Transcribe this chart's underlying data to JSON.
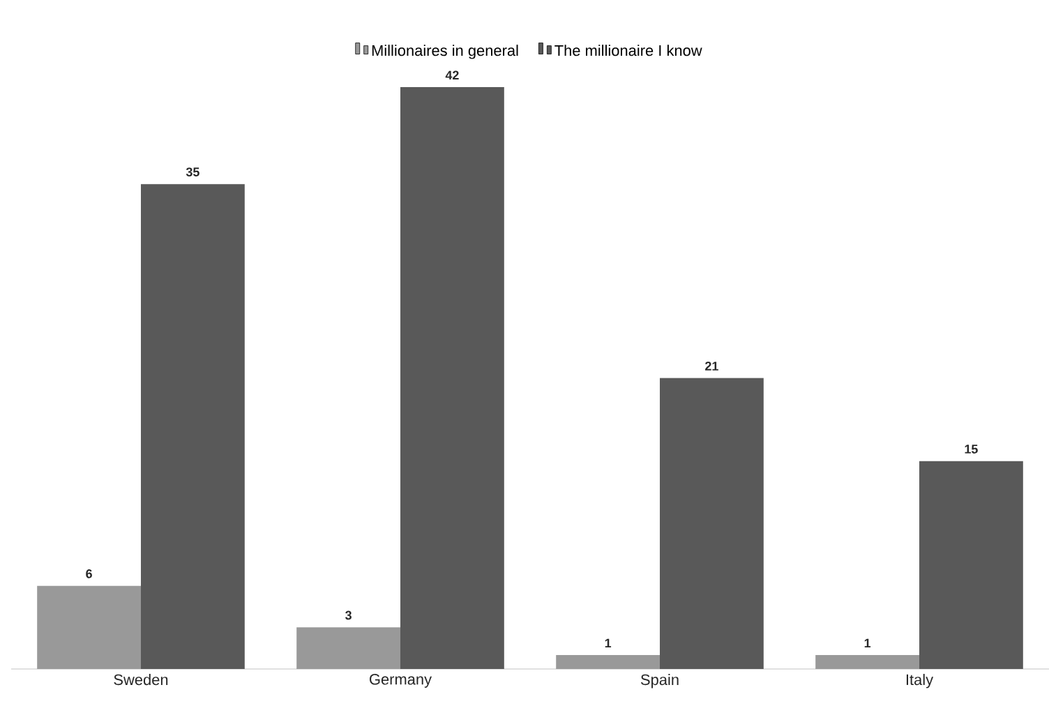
{
  "chart_data": {
    "type": "bar",
    "categories": [
      "Sweden",
      "Germany",
      "Spain",
      "Italy"
    ],
    "series": [
      {
        "name": "Millionaires in general",
        "color": "#999999",
        "values": [
          6,
          3,
          1,
          1
        ]
      },
      {
        "name": "The millionaire I know",
        "color": "#595959",
        "values": [
          35,
          42,
          21,
          15
        ]
      }
    ],
    "data_labels": true,
    "legend": "top"
  }
}
